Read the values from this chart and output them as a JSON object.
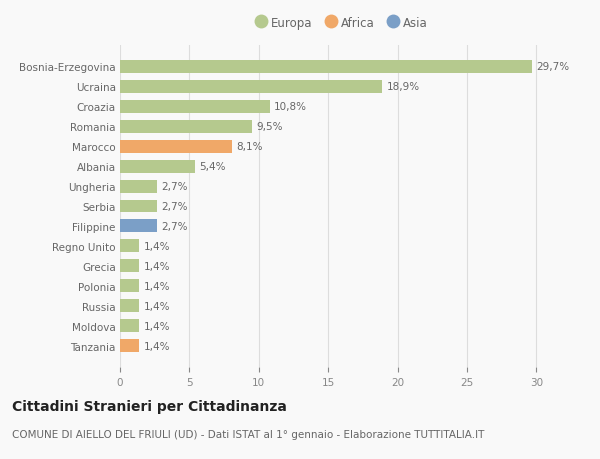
{
  "categories": [
    "Bosnia-Erzegovina",
    "Ucraina",
    "Croazia",
    "Romania",
    "Marocco",
    "Albania",
    "Ungheria",
    "Serbia",
    "Filippine",
    "Regno Unito",
    "Grecia",
    "Polonia",
    "Russia",
    "Moldova",
    "Tanzania"
  ],
  "values": [
    29.7,
    18.9,
    10.8,
    9.5,
    8.1,
    5.4,
    2.7,
    2.7,
    2.7,
    1.4,
    1.4,
    1.4,
    1.4,
    1.4,
    1.4
  ],
  "labels": [
    "29,7%",
    "18,9%",
    "10,8%",
    "9,5%",
    "8,1%",
    "5,4%",
    "2,7%",
    "2,7%",
    "2,7%",
    "1,4%",
    "1,4%",
    "1,4%",
    "1,4%",
    "1,4%",
    "1,4%"
  ],
  "colors": [
    "#b5c98e",
    "#b5c98e",
    "#b5c98e",
    "#b5c98e",
    "#f0a868",
    "#b5c98e",
    "#b5c98e",
    "#b5c98e",
    "#7b9fc7",
    "#b5c98e",
    "#b5c98e",
    "#b5c98e",
    "#b5c98e",
    "#b5c98e",
    "#f0a868"
  ],
  "legend": [
    {
      "label": "Europa",
      "color": "#b5c98e"
    },
    {
      "label": "Africa",
      "color": "#f0a868"
    },
    {
      "label": "Asia",
      "color": "#7b9fc7"
    }
  ],
  "xlim": [
    0,
    32
  ],
  "xticks": [
    0,
    5,
    10,
    15,
    20,
    25,
    30
  ],
  "title": "Cittadini Stranieri per Cittadinanza",
  "subtitle": "COMUNE DI AIELLO DEL FRIULI (UD) - Dati ISTAT al 1° gennaio - Elaborazione TUTTITALIA.IT",
  "background_color": "#f9f9f9",
  "grid_color": "#dddddd",
  "label_fontsize": 7.5,
  "tick_fontsize": 7.5,
  "title_fontsize": 10,
  "subtitle_fontsize": 7.5,
  "legend_fontsize": 8.5
}
